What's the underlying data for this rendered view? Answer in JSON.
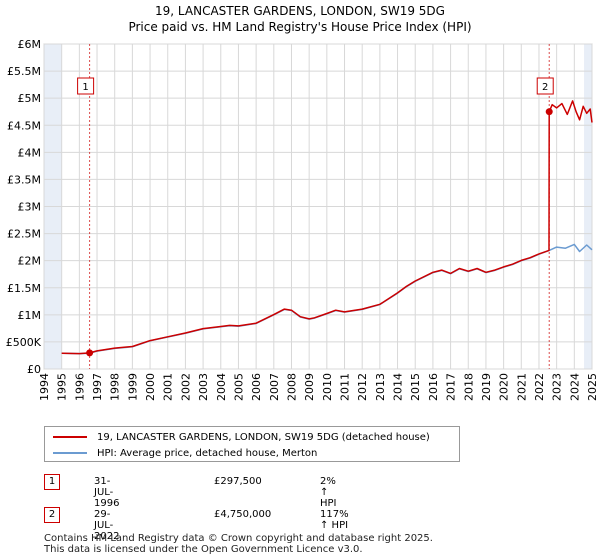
{
  "chart_data": {
    "type": "line",
    "title": "19, LANCASTER GARDENS, LONDON, SW19 5DG",
    "subtitle": "Price paid vs. HM Land Registry's House Price Index (HPI)",
    "xlabel": "",
    "ylabel": "",
    "xlim": [
      1994,
      2025
    ],
    "ylim": [
      0,
      6000000
    ],
    "yticks": [
      0,
      500000,
      1000000,
      1500000,
      2000000,
      2500000,
      3000000,
      3500000,
      4000000,
      4500000,
      5000000,
      5500000,
      6000000
    ],
    "ytick_labels": [
      "£0",
      "£500K",
      "£1M",
      "£1.5M",
      "£2M",
      "£2.5M",
      "£3M",
      "£3.5M",
      "£4M",
      "£4.5M",
      "£5M",
      "£5.5M",
      "£6M"
    ],
    "xticks": [
      1994,
      1995,
      1996,
      1997,
      1998,
      1999,
      2000,
      2001,
      2002,
      2003,
      2004,
      2005,
      2006,
      2007,
      2008,
      2009,
      2010,
      2011,
      2012,
      2013,
      2014,
      2015,
      2016,
      2017,
      2018,
      2019,
      2020,
      2021,
      2022,
      2023,
      2024,
      2025
    ],
    "xtick_labels": [
      "1994",
      "1995",
      "1996",
      "1997",
      "1998",
      "1999",
      "2000",
      "2001",
      "2002",
      "2003",
      "2004",
      "2005",
      "2006",
      "2007",
      "2008",
      "2009",
      "2010",
      "2011",
      "2012",
      "2013",
      "2014",
      "2015",
      "2016",
      "2017",
      "2018",
      "2019",
      "2020",
      "2021",
      "2022",
      "2023",
      "2024",
      "2025"
    ],
    "grid": true,
    "series": [
      {
        "name": "HPI: Average price, detached house, Merton",
        "color": "#6b9bd1",
        "x": [
          1995.0,
          1996.0,
          1996.58,
          1997.0,
          1998.0,
          1999.0,
          2000.0,
          2001.0,
          2002.0,
          2003.0,
          2004.0,
          2004.5,
          2005.0,
          2006.0,
          2007.0,
          2007.6,
          2008.0,
          2008.5,
          2009.0,
          2009.3,
          2010.0,
          2010.5,
          2011.0,
          2012.0,
          2013.0,
          2014.0,
          2014.5,
          2015.0,
          2016.0,
          2016.5,
          2017.0,
          2017.5,
          2018.0,
          2018.5,
          2019.0,
          2019.5,
          2020.0,
          2020.5,
          2021.0,
          2021.5,
          2022.0,
          2022.58,
          2023.0,
          2023.5,
          2024.0,
          2024.3,
          2024.7,
          2025.0
        ],
        "y": [
          290000,
          285000,
          291000,
          330000,
          380000,
          410000,
          520000,
          590000,
          660000,
          740000,
          780000,
          800000,
          790000,
          840000,
          1000000,
          1100000,
          1080000,
          960000,
          920000,
          940000,
          1020000,
          1080000,
          1050000,
          1100000,
          1190000,
          1400000,
          1520000,
          1620000,
          1780000,
          1820000,
          1760000,
          1850000,
          1800000,
          1850000,
          1780000,
          1820000,
          1880000,
          1930000,
          2000000,
          2050000,
          2120000,
          2190000,
          2250000,
          2230000,
          2300000,
          2170000,
          2290000,
          2200000
        ]
      },
      {
        "name": "19, LANCASTER GARDENS, LONDON, SW19 5DG (detached house)",
        "color": "#cc0000",
        "x": [
          1995.0,
          1996.0,
          1996.58,
          1997.0,
          1998.0,
          1999.0,
          2000.0,
          2001.0,
          2002.0,
          2003.0,
          2004.0,
          2004.5,
          2005.0,
          2006.0,
          2007.0,
          2007.6,
          2008.0,
          2008.5,
          2009.0,
          2009.3,
          2010.0,
          2010.5,
          2011.0,
          2012.0,
          2013.0,
          2014.0,
          2014.5,
          2015.0,
          2016.0,
          2016.5,
          2017.0,
          2017.5,
          2018.0,
          2018.5,
          2019.0,
          2019.5,
          2020.0,
          2020.5,
          2021.0,
          2021.5,
          2022.0,
          2022.57,
          2022.58,
          2022.75,
          2023.0,
          2023.3,
          2023.6,
          2023.9,
          2024.1,
          2024.3,
          2024.5,
          2024.7,
          2024.9,
          2025.0
        ],
        "y": [
          290000,
          285000,
          297500,
          335000,
          385000,
          415000,
          525000,
          595000,
          665000,
          745000,
          785000,
          805000,
          795000,
          845000,
          1005000,
          1105000,
          1085000,
          965000,
          925000,
          945000,
          1025000,
          1085000,
          1055000,
          1105000,
          1195000,
          1405000,
          1525000,
          1625000,
          1785000,
          1825000,
          1765000,
          1855000,
          1805000,
          1855000,
          1785000,
          1825000,
          1885000,
          1935000,
          2005000,
          2055000,
          2125000,
          2190000,
          4750000,
          4880000,
          4820000,
          4900000,
          4700000,
          4950000,
          4750000,
          4600000,
          4850000,
          4720000,
          4800000,
          4550000
        ]
      }
    ],
    "annotations": [
      {
        "label": "1",
        "x": 1996.58,
        "y": 297500
      },
      {
        "label": "2",
        "x": 2022.58,
        "y": 4750000
      }
    ]
  },
  "legend": {
    "property_label": "19, LANCASTER GARDENS, LONDON, SW19 5DG (detached house)",
    "hpi_label": "HPI: Average price, detached house, Merton"
  },
  "sales": [
    {
      "num": "1",
      "date": "31-JUL-1996",
      "price": "£297,500",
      "hpi": "2% ↑ HPI"
    },
    {
      "num": "2",
      "date": "29-JUL-2022",
      "price": "£4,750,000",
      "hpi": "117% ↑ HPI"
    }
  ],
  "footer": {
    "line1": "Contains HM Land Registry data © Crown copyright and database right 2025.",
    "line2": "This data is licensed under the Open Government Licence v3.0."
  },
  "colors": {
    "property": "#cc0000",
    "hpi": "#6b9bd1",
    "plot_bg": "#ffffff",
    "grid": "#d8d8d8",
    "shade": "#e8eef7"
  }
}
